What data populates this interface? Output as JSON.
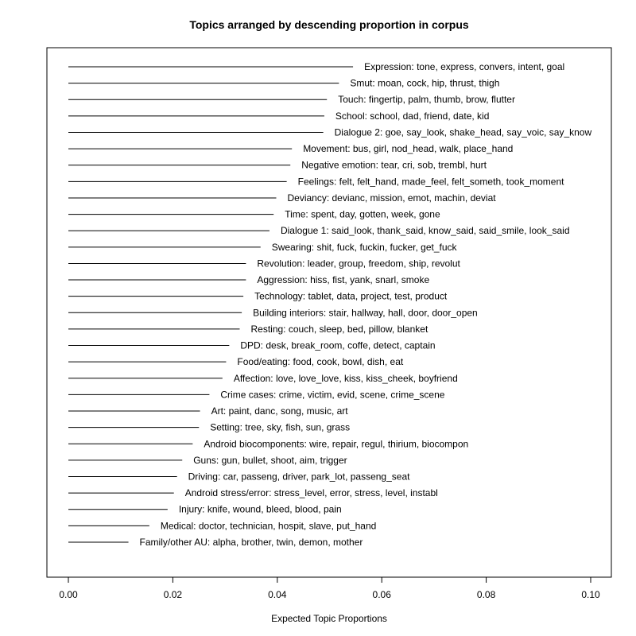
{
  "chart_data": {
    "type": "bar",
    "orientation": "horizontal",
    "title": "Topics arranged by descending proportion in corpus",
    "xlabel": "Expected Topic Proportions",
    "ylabel": "",
    "xlim": [
      0,
      0.1
    ],
    "xticks": [
      0.0,
      0.02,
      0.04,
      0.06,
      0.08,
      0.1
    ],
    "xtick_labels": [
      "0.00",
      "0.02",
      "0.04",
      "0.06",
      "0.08",
      "0.10"
    ],
    "grid": false,
    "legend": "none",
    "topics": [
      {
        "label": "Expression: tone, express, convers, intent, goal",
        "value": 0.0545
      },
      {
        "label": "Smut: moan, cock, hip, thrust, thigh",
        "value": 0.0518
      },
      {
        "label": "Touch: fingertip, palm, thumb, brow, flutter",
        "value": 0.0495
      },
      {
        "label": "School: school, dad, friend, date, kid",
        "value": 0.049
      },
      {
        "label": "Dialogue 2: goe, say_look, shake_head, say_voic, say_know",
        "value": 0.0488
      },
      {
        "label": "Movement: bus, girl, nod_head, walk, place_hand",
        "value": 0.0428
      },
      {
        "label": "Negative emotion: tear, cri, sob, trembl, hurt",
        "value": 0.0425
      },
      {
        "label": "Feelings: felt, felt_hand, made_feel, felt_someth, took_moment",
        "value": 0.0418
      },
      {
        "label": "Deviancy: devianc, mission, emot, machin, deviat",
        "value": 0.0398
      },
      {
        "label": "Time: spent, day, gotten, week, gone",
        "value": 0.0393
      },
      {
        "label": "Dialogue 1: said_look, thank_said, know_said, said_smile, look_said",
        "value": 0.0385
      },
      {
        "label": "Swearing: shit, fuck, fuckin, fucker, get_fuck",
        "value": 0.0368
      },
      {
        "label": "Revolution: leader, group, freedom, ship, revolut",
        "value": 0.034
      },
      {
        "label": "Aggression: hiss, fist, yank, snarl, smoke",
        "value": 0.034
      },
      {
        "label": "Technology: tablet, data, project, test, product",
        "value": 0.0335
      },
      {
        "label": "Building interiors: stair, hallway, hall, door, door_open",
        "value": 0.0332
      },
      {
        "label": "Resting: couch, sleep, bed, pillow, blanket",
        "value": 0.0328
      },
      {
        "label": "DPD: desk, break_room, coffe, detect, captain",
        "value": 0.0308
      },
      {
        "label": "Food/eating: food, cook, bowl, dish, eat",
        "value": 0.0302
      },
      {
        "label": "Affection: love, love_love, kiss, kiss_cheek, boyfriend",
        "value": 0.0295
      },
      {
        "label": "Crime cases: crime, victim, evid, scene, crime_scene",
        "value": 0.027
      },
      {
        "label": "Art: paint, danc, song, music, art",
        "value": 0.0252
      },
      {
        "label": "Setting: tree, sky, fish, sun, grass",
        "value": 0.025
      },
      {
        "label": "Android biocomponents: wire, repair, regul, thirium, biocompon",
        "value": 0.0238
      },
      {
        "label": "Guns: gun, bullet, shoot, aim, trigger",
        "value": 0.0218
      },
      {
        "label": "Driving: car, passeng, driver, park_lot, passeng_seat",
        "value": 0.0208
      },
      {
        "label": "Android stress/error: stress_level, error, stress, level, instabl",
        "value": 0.0202
      },
      {
        "label": "Injury: knife, wound, bleed, blood, pain",
        "value": 0.019
      },
      {
        "label": "Medical: doctor, technician, hospit, slave, put_hand",
        "value": 0.0155
      },
      {
        "label": "Family/other AU: alpha, brother, twin, demon, mother",
        "value": 0.0115
      }
    ]
  }
}
